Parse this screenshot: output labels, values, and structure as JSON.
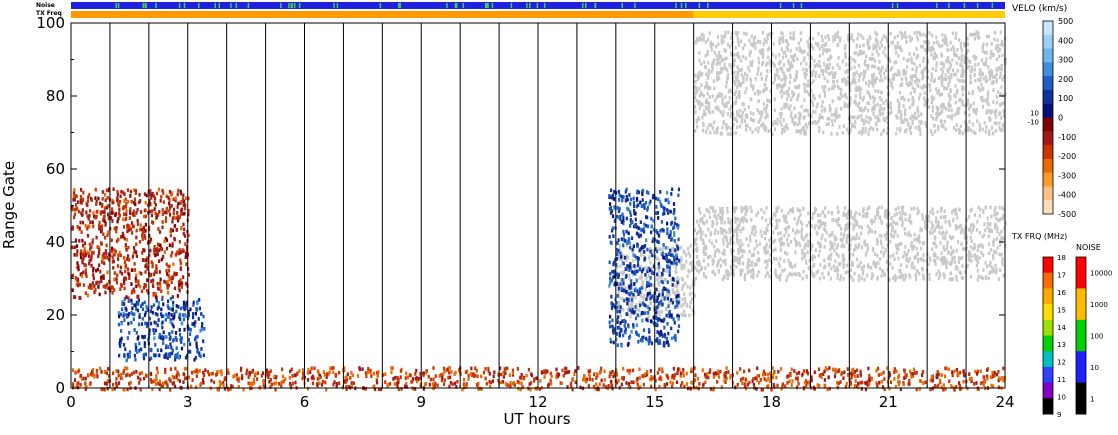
{
  "chart_data": {
    "type": "heatmap",
    "xlabel": "UT hours",
    "ylabel": "Range Gate",
    "xlim": [
      0,
      24
    ],
    "ylim": [
      0,
      100
    ],
    "x_ticks": [
      "0",
      "3",
      "6",
      "9",
      "12",
      "15",
      "18",
      "21",
      "24"
    ],
    "x_tick_values": [
      0,
      3,
      6,
      9,
      12,
      15,
      18,
      21,
      24
    ],
    "y_ticks": [
      "0",
      "20",
      "40",
      "60",
      "80",
      "100"
    ],
    "y_tick_values": [
      0,
      20,
      40,
      60,
      80,
      100
    ],
    "scan_boundaries_hours": [
      1,
      2,
      3,
      4,
      5,
      6,
      7,
      8,
      9,
      10,
      11,
      12,
      13,
      14,
      15,
      16,
      17,
      18,
      19,
      20,
      21,
      22,
      23
    ],
    "top_bars": {
      "noise_label": "Noise",
      "txfrq_label": "TX Freq",
      "noise_color": "#2020e0",
      "noise_speckle_color": "#40d040",
      "txfrq_before_color": "#ff9900",
      "txfrq_after_color": "#ffcc00",
      "txfrq_change_hour": 16
    },
    "regions": [
      {
        "name": "ground-scatter band afternoon",
        "x": [
          16.0,
          24.0
        ],
        "y": [
          30,
          50
        ],
        "value_kms": 0,
        "ground_scatter": true
      },
      {
        "name": "ground-scatter wedge",
        "x": [
          14.0,
          16.0
        ],
        "y": [
          20,
          40
        ],
        "value_kms": 0,
        "ground_scatter": true
      },
      {
        "name": "early echoes",
        "x": [
          0.0,
          3.0
        ],
        "y": [
          25,
          55
        ],
        "value_kms": -150
      },
      {
        "name": "early near-range echoes",
        "x": [
          1.2,
          3.4
        ],
        "y": [
          8,
          25
        ],
        "value_kms": 150
      },
      {
        "name": "near-range band",
        "x": [
          0.0,
          24.0
        ],
        "y": [
          0,
          6
        ],
        "value_kms": -200
      },
      {
        "name": "far-range afternoon",
        "x": [
          16.0,
          24.0
        ],
        "y": [
          70,
          98
        ],
        "value_kms": 0,
        "ground_scatter": true
      },
      {
        "name": "midday slanted echoes",
        "x": [
          13.8,
          15.6
        ],
        "y": [
          12,
          55
        ],
        "value_kms": 150
      }
    ],
    "velocity_scale": {
      "title": "VELO (km/s)",
      "ticks": [
        "500",
        "400",
        "300",
        "200",
        "100",
        "0",
        "-100",
        "-200",
        "-300",
        "-400",
        "-500"
      ],
      "mid_labels": [
        "10",
        "-10"
      ],
      "colors": [
        "#c6e7ff",
        "#9ed0f5",
        "#6eb6ec",
        "#3b8fdb",
        "#1f5fc4",
        "#10309a",
        "#08107a",
        "#800000",
        "#a01818",
        "#cc3300",
        "#e86a00",
        "#ff9a2a",
        "#ffc080",
        "#ffdfbd"
      ]
    },
    "txfreq_scale": {
      "title": "TX FRQ (MHz)",
      "ticks": [
        "18",
        "17",
        "16",
        "15",
        "14",
        "13",
        "12",
        "11",
        "10",
        "9"
      ],
      "colors": [
        "#ff0000",
        "#ff6a00",
        "#ffaa00",
        "#ffdd00",
        "#a0e000",
        "#00d000",
        "#00c0c0",
        "#3040ff",
        "#8000c0",
        "#000000"
      ]
    },
    "noise_scale": {
      "title": "NOISE",
      "ticks": [
        "10000",
        "1000",
        "100",
        "10",
        "1"
      ],
      "colors": [
        "#ff0000",
        "#ffbb00",
        "#00d000",
        "#2020ff",
        "#000000"
      ]
    }
  }
}
